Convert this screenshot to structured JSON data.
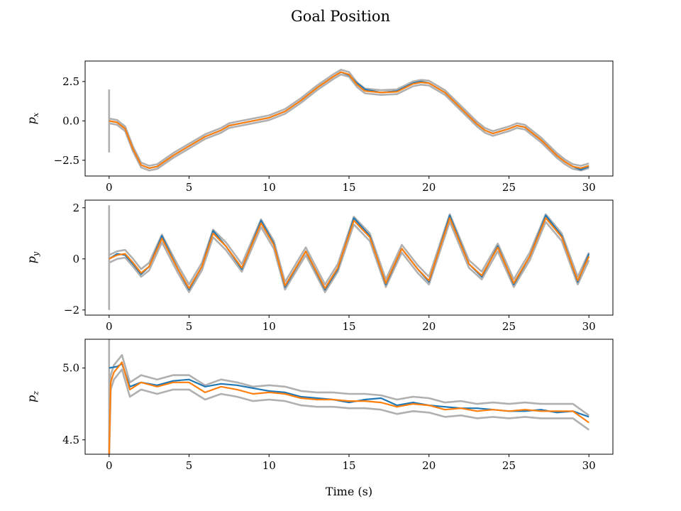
{
  "chart_data": {
    "type": "line",
    "title": "Goal Position",
    "xlabel": "Time (s)",
    "colors": {
      "series_1": "#1f77b4",
      "series_2": "#ff7f0e",
      "bounds": "#b0b0b0"
    },
    "subplots": [
      {
        "ylabel_main": "p",
        "ylabel_sub": "x",
        "xlim": [
          -1.5,
          31.5
        ],
        "ylim": [
          -3.5,
          3.8
        ],
        "xticks": [
          0,
          5,
          10,
          15,
          20,
          25,
          30
        ],
        "xtick_labels": [
          "0",
          "5",
          "10",
          "15",
          "20",
          "25",
          "30"
        ],
        "yticks": [
          2.5,
          0,
          -2.5
        ],
        "ytick_labels": [
          "2.5",
          "0.0",
          "−2.5"
        ],
        "band": 0.15,
        "initial_spike": [
          2.0,
          -2.0
        ],
        "series_1": {
          "x": [
            0,
            0.5,
            1,
            1.5,
            2,
            2.5,
            3,
            4,
            5,
            6,
            7,
            7.5,
            8,
            9,
            10,
            11,
            12,
            13,
            14,
            14.5,
            15,
            15.5,
            16,
            17,
            18,
            19,
            19.5,
            20,
            21,
            22,
            23,
            23.5,
            24,
            25,
            25.5,
            26,
            27,
            28,
            28.5,
            29,
            29.5,
            30
          ],
          "y": [
            0,
            -0.1,
            -0.5,
            -1.8,
            -2.8,
            -3.0,
            -2.9,
            -2.2,
            -1.6,
            -1.0,
            -0.6,
            -0.3,
            -0.2,
            0.0,
            0.2,
            0.6,
            1.3,
            2.1,
            2.8,
            3.1,
            2.9,
            2.4,
            2.0,
            1.8,
            1.9,
            2.4,
            2.5,
            2.4,
            1.8,
            0.8,
            -0.2,
            -0.6,
            -0.8,
            -0.5,
            -0.3,
            -0.4,
            -1.2,
            -2.2,
            -2.6,
            -2.9,
            -3.1,
            -2.9
          ]
        },
        "series_2": {
          "x": [
            0,
            0.5,
            1,
            1.5,
            2,
            2.5,
            3,
            4,
            5,
            6,
            7,
            7.5,
            8,
            9,
            10,
            11,
            12,
            13,
            14,
            14.5,
            15,
            15.5,
            16,
            17,
            18,
            19,
            19.5,
            20,
            21,
            22,
            23,
            23.5,
            24,
            25,
            25.5,
            26,
            27,
            28,
            28.5,
            29,
            29.5,
            30
          ],
          "y": [
            0,
            -0.1,
            -0.5,
            -1.8,
            -2.8,
            -3.0,
            -2.9,
            -2.2,
            -1.6,
            -1.0,
            -0.6,
            -0.3,
            -0.2,
            0.0,
            0.2,
            0.6,
            1.3,
            2.1,
            2.8,
            3.1,
            2.95,
            2.3,
            1.9,
            1.8,
            1.85,
            2.35,
            2.45,
            2.4,
            1.8,
            0.8,
            -0.2,
            -0.6,
            -0.8,
            -0.5,
            -0.3,
            -0.4,
            -1.2,
            -2.2,
            -2.6,
            -2.9,
            -3.0,
            -2.85
          ]
        }
      },
      {
        "ylabel_main": "p",
        "ylabel_sub": "y",
        "xlim": [
          -1.5,
          31.5
        ],
        "ylim": [
          -2.2,
          2.3
        ],
        "xticks": [
          0,
          5,
          10,
          15,
          20,
          25,
          30
        ],
        "xtick_labels": [
          "0",
          "5",
          "10",
          "15",
          "20",
          "25",
          "30"
        ],
        "yticks": [
          2,
          0,
          -2
        ],
        "ytick_labels": [
          "2",
          "0",
          "−2"
        ],
        "band": 0.15,
        "initial_spike": [
          2.1,
          -2.0
        ],
        "series_1": {
          "x": [
            0,
            0.5,
            1,
            1.5,
            2,
            2.5,
            3.3,
            4.3,
            5,
            5.8,
            6.5,
            7.3,
            8.3,
            9.5,
            10.3,
            11,
            12.3,
            13.5,
            14.3,
            15.3,
            16.3,
            17.3,
            18.3,
            19.3,
            20,
            21.3,
            22.5,
            23.3,
            24.3,
            25.3,
            26.3,
            27.3,
            28.3,
            29.3,
            30
          ],
          "y": [
            0,
            0.2,
            0.15,
            -0.2,
            -0.6,
            -0.3,
            0.9,
            -0.4,
            -1.2,
            -0.3,
            1.1,
            0.5,
            -0.4,
            1.5,
            0.6,
            -1.1,
            0.3,
            -1.2,
            -0.4,
            1.6,
            0.9,
            -1.0,
            0.4,
            -0.4,
            -0.9,
            1.7,
            -0.2,
            -0.7,
            0.5,
            -1.0,
            0.1,
            1.7,
            0.9,
            -0.9,
            0.2
          ]
        },
        "series_2": {
          "x": [
            0,
            0.5,
            1,
            1.5,
            2,
            2.5,
            3.3,
            4.3,
            5,
            5.8,
            6.5,
            7.3,
            8.3,
            9.5,
            10.3,
            11,
            12.3,
            13.5,
            14.3,
            15.3,
            16.3,
            17.3,
            18.3,
            19.3,
            20,
            21.3,
            22.5,
            23.3,
            24.3,
            25.3,
            26.3,
            27.3,
            28.3,
            29.3,
            30
          ],
          "y": [
            0,
            0.15,
            0.2,
            -0.15,
            -0.55,
            -0.3,
            0.8,
            -0.4,
            -1.15,
            -0.3,
            1.0,
            0.5,
            -0.35,
            1.4,
            0.55,
            -1.05,
            0.3,
            -1.15,
            -0.35,
            1.5,
            0.85,
            -0.95,
            0.4,
            -0.4,
            -0.85,
            1.6,
            -0.2,
            -0.65,
            0.45,
            -0.95,
            0.1,
            1.6,
            0.85,
            -0.85,
            0.1
          ]
        }
      },
      {
        "ylabel_main": "p",
        "ylabel_sub": "z",
        "xlim": [
          -1.5,
          31.5
        ],
        "ylim": [
          4.4,
          5.2
        ],
        "xticks": [
          0,
          5,
          10,
          15,
          20,
          25,
          30
        ],
        "xtick_labels": [
          "0",
          "5",
          "10",
          "15",
          "20",
          "25",
          "30"
        ],
        "yticks": [
          5.0,
          4.5
        ],
        "ytick_labels": [
          "5.0",
          "4.5"
        ],
        "band": 0.05,
        "initial_spike": [
          5.2,
          4.4
        ],
        "series_1": {
          "x": [
            0,
            0.5,
            0.8,
            1.3,
            2,
            3,
            4,
            5,
            6,
            7,
            8,
            9,
            10,
            11,
            12,
            13,
            14,
            15,
            16,
            17,
            18,
            19,
            20,
            21,
            22,
            23,
            24,
            25,
            26,
            27,
            28,
            29,
            30
          ],
          "y": [
            5.0,
            5.01,
            5.03,
            4.87,
            4.9,
            4.88,
            4.91,
            4.92,
            4.87,
            4.89,
            4.88,
            4.86,
            4.84,
            4.83,
            4.8,
            4.79,
            4.78,
            4.76,
            4.78,
            4.79,
            4.74,
            4.76,
            4.74,
            4.73,
            4.72,
            4.72,
            4.71,
            4.7,
            4.7,
            4.71,
            4.69,
            4.7,
            4.66
          ]
        },
        "series_2": {
          "x": [
            0,
            0.1,
            0.3,
            0.8,
            1.3,
            2,
            3,
            4,
            5,
            6,
            7,
            8,
            9,
            10,
            11,
            12,
            13,
            14,
            15,
            16,
            17,
            18,
            19,
            20,
            21,
            22,
            23,
            24,
            25,
            26,
            27,
            28,
            29,
            30
          ],
          "y": [
            4.4,
            4.9,
            4.97,
            5.04,
            4.85,
            4.9,
            4.87,
            4.9,
            4.9,
            4.83,
            4.87,
            4.85,
            4.82,
            4.83,
            4.82,
            4.79,
            4.78,
            4.78,
            4.77,
            4.77,
            4.76,
            4.73,
            4.75,
            4.74,
            4.71,
            4.72,
            4.7,
            4.71,
            4.7,
            4.71,
            4.7,
            4.7,
            4.7,
            4.62
          ]
        }
      }
    ]
  }
}
